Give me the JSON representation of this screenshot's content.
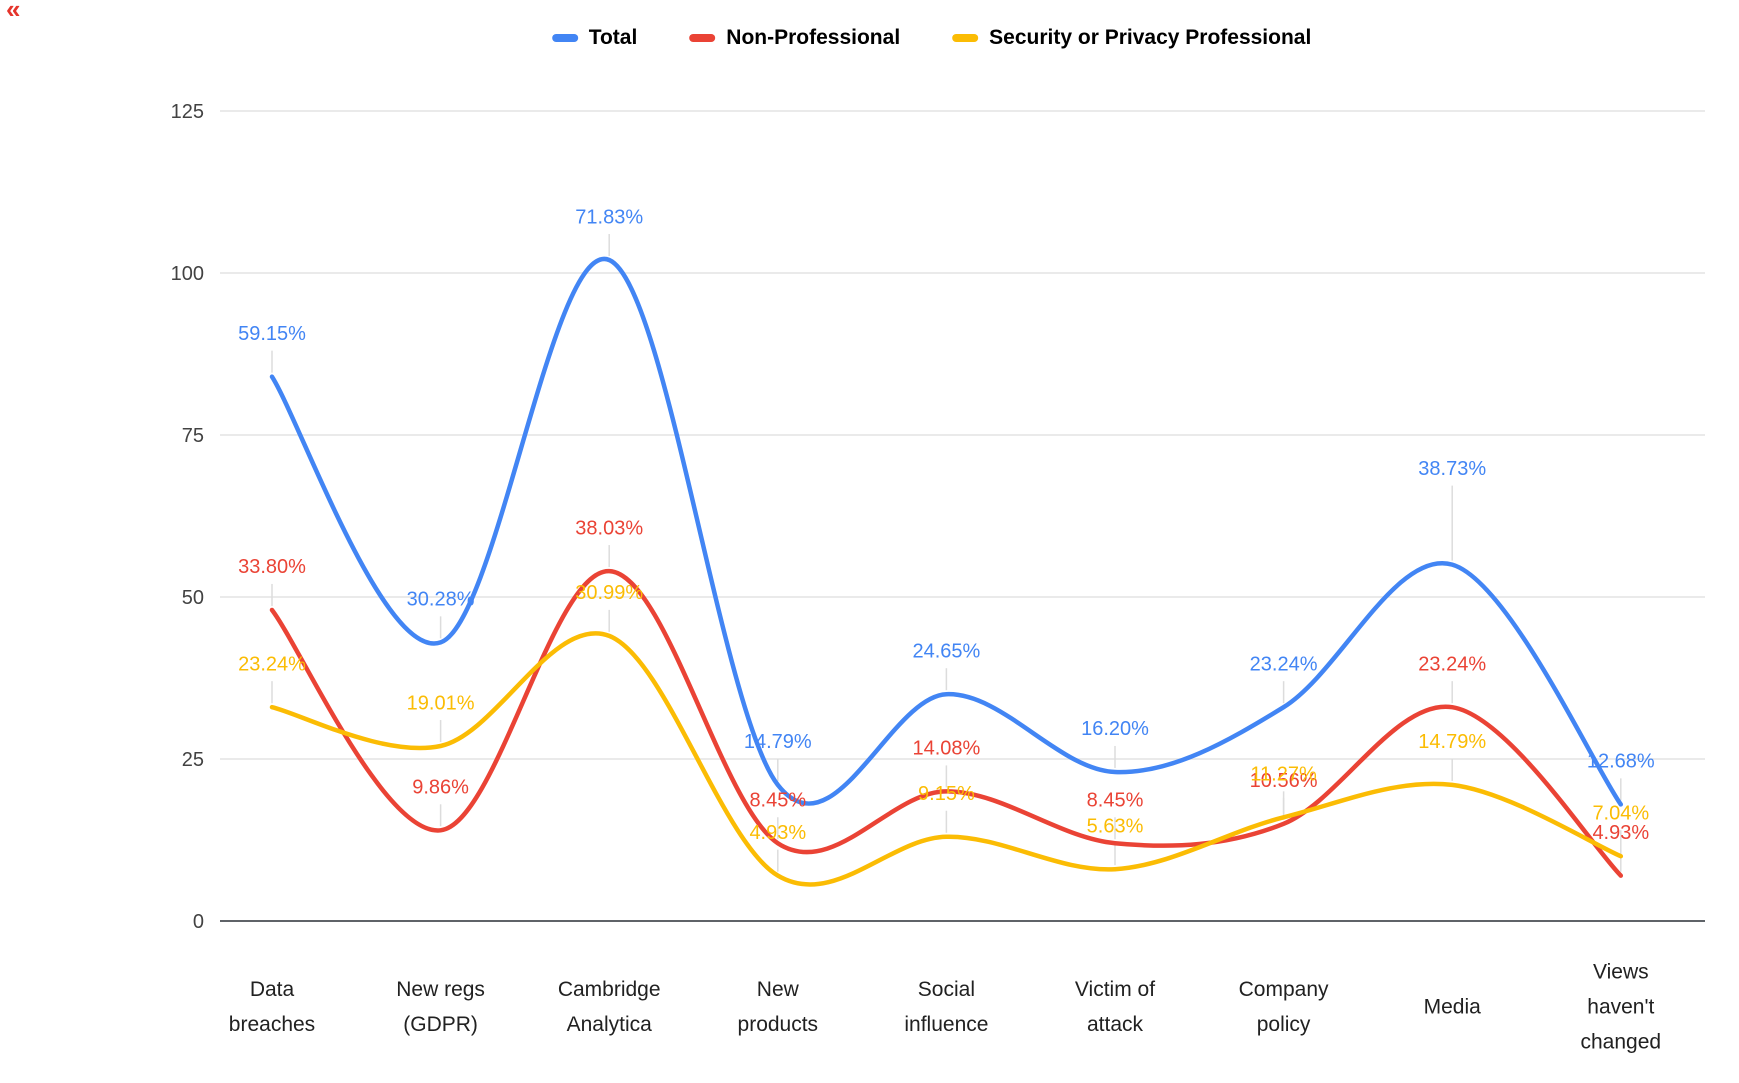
{
  "page": {
    "corner_mark": "«"
  },
  "chart_data": {
    "type": "line",
    "smooth_curves": true,
    "legend_position": "top",
    "grid": "horizontal-only",
    "categories": [
      "Data breaches",
      "New regs (GDPR)",
      "Cambridge Analytica",
      "New products",
      "Social influence",
      "Victim of attack",
      "Company policy",
      "Media",
      "Views haven't changed"
    ],
    "category_label_lines": [
      [
        "Data",
        "breaches"
      ],
      [
        "New regs",
        "(GDPR)"
      ],
      [
        "Cambridge",
        "Analytica"
      ],
      [
        "New",
        "products"
      ],
      [
        "Social",
        "influence"
      ],
      [
        "Victim of",
        "attack"
      ],
      [
        "Company",
        "policy"
      ],
      [
        "Media"
      ],
      [
        "Views",
        "haven't",
        "changed"
      ]
    ],
    "y_axis": {
      "min": 0,
      "max": 125,
      "ticks": [
        0,
        25,
        50,
        75,
        100,
        125
      ],
      "tick_labels": [
        "0",
        "25",
        "50",
        "75",
        "100",
        "125"
      ]
    },
    "series": [
      {
        "name": "Total",
        "color": "#4285F4",
        "plotted_values": [
          84,
          43,
          102,
          21,
          35,
          23,
          33,
          55,
          18
        ],
        "point_labels": [
          "59.15%",
          "30.28%",
          "71.83%",
          "14.79%",
          "24.65%",
          "16.20%",
          "23.24%",
          "38.73%",
          "12.68%"
        ]
      },
      {
        "name": "Non-Professional",
        "color": "#EA4335",
        "plotted_values": [
          48,
          14,
          54,
          12,
          20,
          12,
          15,
          33,
          7
        ],
        "point_labels": [
          "33.80%",
          "9.86%",
          "38.03%",
          "8.45%",
          "14.08%",
          "8.45%",
          "10.56%",
          "23.24%",
          "4.93%"
        ]
      },
      {
        "name": "Security or Privacy Professional",
        "color": "#FBBC04",
        "plotted_values": [
          33,
          27,
          44,
          7,
          13,
          8,
          16,
          21,
          10
        ],
        "point_labels": [
          "23.24%",
          "19.01%",
          "30.99%",
          "4.93%",
          "9.15%",
          "5.63%",
          "11.27%",
          "14.79%",
          "7.04%"
        ]
      }
    ]
  }
}
